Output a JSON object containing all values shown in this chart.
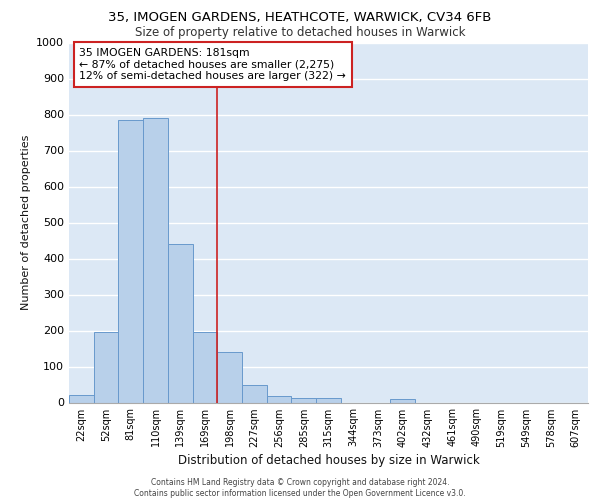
{
  "title1": "35, IMOGEN GARDENS, HEATHCOTE, WARWICK, CV34 6FB",
  "title2": "Size of property relative to detached houses in Warwick",
  "xlabel": "Distribution of detached houses by size in Warwick",
  "ylabel": "Number of detached properties",
  "categories": [
    "22sqm",
    "52sqm",
    "81sqm",
    "110sqm",
    "139sqm",
    "169sqm",
    "198sqm",
    "227sqm",
    "256sqm",
    "285sqm",
    "315sqm",
    "344sqm",
    "373sqm",
    "402sqm",
    "432sqm",
    "461sqm",
    "490sqm",
    "519sqm",
    "549sqm",
    "578sqm",
    "607sqm"
  ],
  "values": [
    20,
    195,
    785,
    790,
    440,
    195,
    140,
    50,
    18,
    13,
    13,
    0,
    0,
    10,
    0,
    0,
    0,
    0,
    0,
    0,
    0
  ],
  "bar_color": "#b8d0ea",
  "bar_edge_color": "#6899cc",
  "vline_x": 5.5,
  "vline_color": "#cc2222",
  "annotation_text_line1": "35 IMOGEN GARDENS: 181sqm",
  "annotation_text_line2": "← 87% of detached houses are smaller (2,275)",
  "annotation_text_line3": "12% of semi-detached houses are larger (322) →",
  "annotation_box_facecolor": "#ffffff",
  "annotation_box_edgecolor": "#cc2222",
  "ylim": [
    0,
    1000
  ],
  "yticks": [
    0,
    100,
    200,
    300,
    400,
    500,
    600,
    700,
    800,
    900,
    1000
  ],
  "background_color": "#dce8f5",
  "grid_color": "#ffffff",
  "footer_line1": "Contains HM Land Registry data © Crown copyright and database right 2024.",
  "footer_line2": "Contains public sector information licensed under the Open Government Licence v3.0."
}
